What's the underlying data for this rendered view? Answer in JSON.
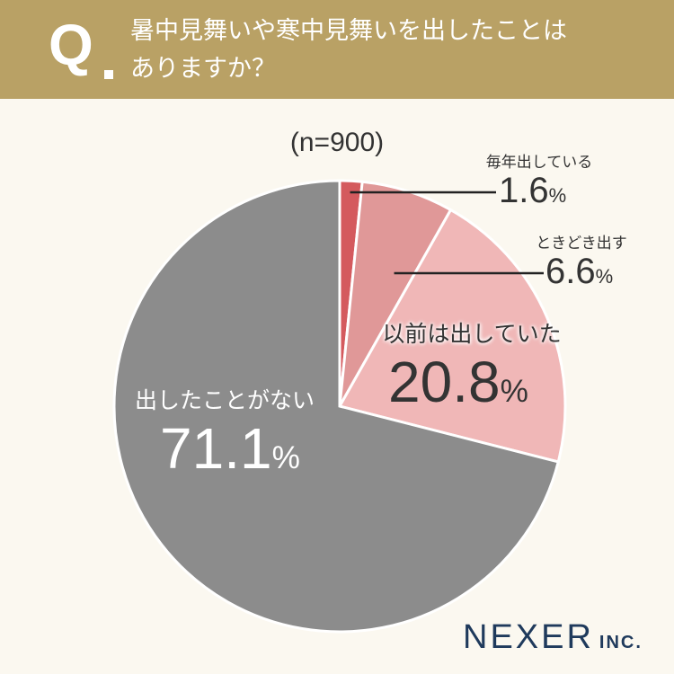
{
  "question": {
    "mark": "Q",
    "text_line1": "暑中見舞いや寒中見舞いを出したことは",
    "text_line2": "ありますか？"
  },
  "sample_size": "(n=900)",
  "colors": {
    "header_bg": "#b9a165",
    "page_bg": "#fbf8f0",
    "slice_every_year": "#d45a5e",
    "slice_sometimes": "#e09898",
    "slice_before": "#f0b7b7",
    "slice_never": "#8c8c8c",
    "logo": "#1f3a5c"
  },
  "chart_data": {
    "type": "pie",
    "title": "",
    "slices": [
      {
        "label": "毎年出している",
        "value": 1.6,
        "display": "1.6",
        "color": "#d45a5e"
      },
      {
        "label": "ときどき出す",
        "value": 6.6,
        "display": "6.6",
        "color": "#e09898"
      },
      {
        "label": "以前は出していた",
        "value": 20.8,
        "display": "20.8",
        "color": "#f0b7b7"
      },
      {
        "label": "出したことがない",
        "value": 71.1,
        "display": "71.1",
        "color": "#8c8c8c"
      }
    ],
    "unit": "%",
    "start": "top",
    "direction": "clockwise"
  },
  "logo": {
    "name": "NEXER",
    "suffix": "INC."
  }
}
